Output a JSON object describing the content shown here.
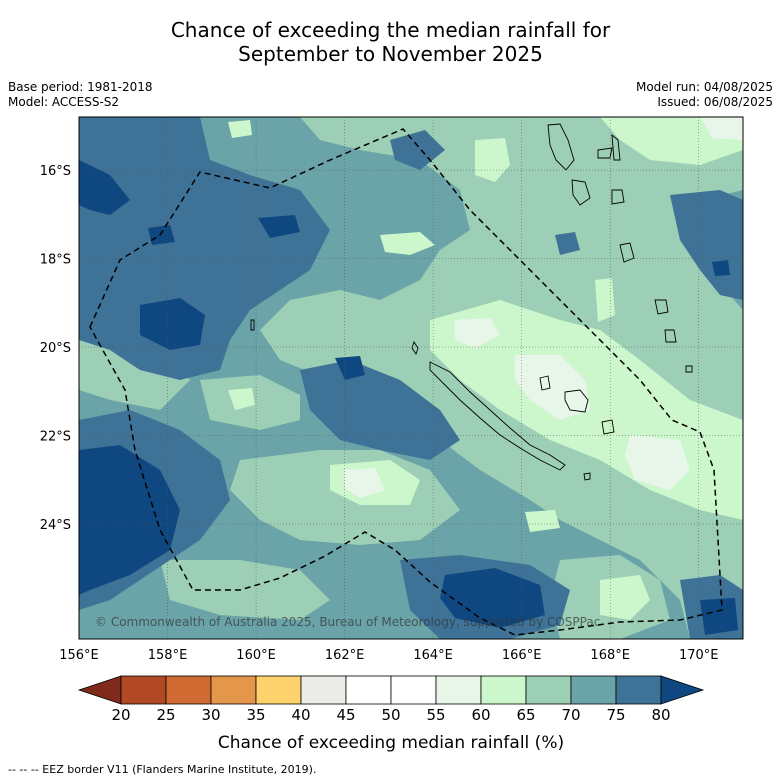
{
  "title_line1": "Chance of exceeding the median rainfall for",
  "title_line2": "September to November 2025",
  "base_period": "Base period: 1981-2018",
  "model": "Model: ACCESS-S2",
  "model_run": "Model run: 04/08/2025",
  "issued": "Issued: 06/08/2025",
  "copyright": "© Commonwealth of Australia 2025, Bureau of Meteorology, supported by COSPPac",
  "footer_note": "--  --  -- EEZ border V11 (Flanders Marine Institute, 2019).",
  "map": {
    "lon_range": [
      156,
      171
    ],
    "lat_range": [
      -14.8,
      -26.6
    ],
    "lon_ticks": [
      "156°E",
      "158°E",
      "160°E",
      "162°E",
      "164°E",
      "166°E",
      "168°E",
      "170°E"
    ],
    "lat_ticks": [
      "16°S",
      "18°S",
      "20°S",
      "22°S",
      "24°S"
    ]
  },
  "colorbar": {
    "label": "Chance of exceeding median rainfall (%)",
    "ticks": [
      "20",
      "25",
      "30",
      "35",
      "40",
      "45",
      "50",
      "55",
      "60",
      "65",
      "70",
      "75",
      "80"
    ],
    "low_color": "#7f2a1a",
    "high_color": "#0f4880",
    "colors": [
      "#b14a24",
      "#cf6a32",
      "#e4964b",
      "#fdd16b",
      "#ebebe7",
      "#ffffff",
      "#ffffff",
      "#e8f6e9",
      "#ccf7cc",
      "#9ccfb6",
      "#6aa3a8",
      "#3e7397"
    ]
  }
}
